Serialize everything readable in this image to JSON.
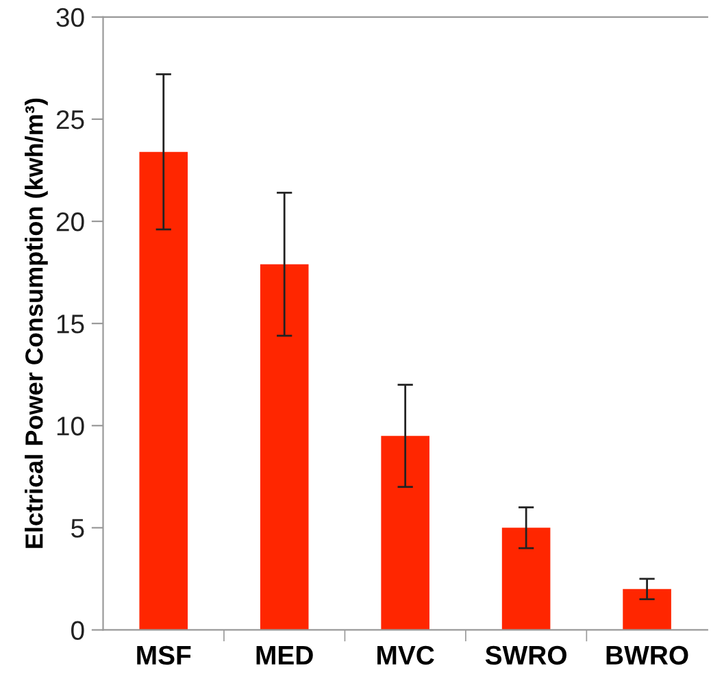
{
  "chart_data": {
    "type": "bar",
    "ylabel": "Elctrical Power Consumption (kwh/m³)",
    "categories": [
      "MSF",
      "MED",
      "MVC",
      "SWRO",
      "BWRO"
    ],
    "values": [
      23.4,
      17.9,
      9.5,
      5.0,
      2.0
    ],
    "errors": [
      3.8,
      3.5,
      2.5,
      1.0,
      0.5
    ],
    "color": "#ff2600",
    "ylim": [
      0,
      30
    ],
    "yticks": [
      0,
      5,
      10,
      15,
      20,
      25,
      30
    ],
    "grid": false
  }
}
